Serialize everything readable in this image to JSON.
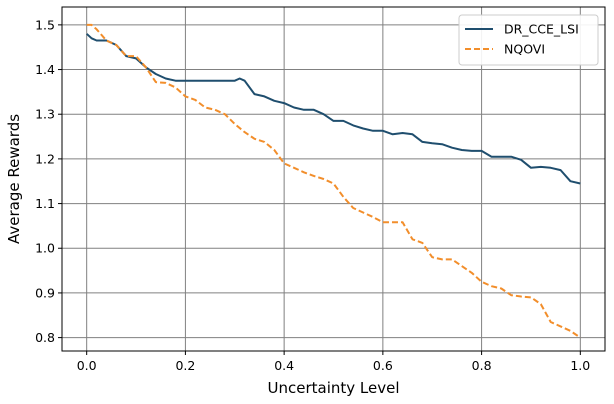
{
  "chart_data": {
    "type": "line",
    "title": "",
    "xlabel": "Uncertainty Level",
    "ylabel": "Average Rewards",
    "xlim": [
      -0.05,
      1.05
    ],
    "ylim": [
      0.77,
      1.54
    ],
    "xticks": [
      0.0,
      0.2,
      0.4,
      0.6,
      0.8,
      1.0
    ],
    "xtick_labels": [
      "0.0",
      "0.2",
      "0.4",
      "0.6",
      "0.8",
      "1.0"
    ],
    "yticks": [
      0.8,
      0.9,
      1.0,
      1.1,
      1.2,
      1.3,
      1.4,
      1.5
    ],
    "ytick_labels": [
      "0.8",
      "0.9",
      "1.0",
      "1.1",
      "1.2",
      "1.3",
      "1.4",
      "1.5"
    ],
    "grid": true,
    "legend_position": "top-right",
    "series": [
      {
        "name": "DR_CCE_LSI",
        "color": "#1f4e6e",
        "style": "solid",
        "x": [
          0.0,
          0.01,
          0.02,
          0.04,
          0.06,
          0.08,
          0.1,
          0.12,
          0.14,
          0.16,
          0.18,
          0.2,
          0.22,
          0.25,
          0.28,
          0.3,
          0.31,
          0.32,
          0.34,
          0.36,
          0.38,
          0.4,
          0.42,
          0.44,
          0.46,
          0.48,
          0.5,
          0.52,
          0.54,
          0.56,
          0.58,
          0.6,
          0.62,
          0.64,
          0.66,
          0.68,
          0.7,
          0.72,
          0.74,
          0.76,
          0.78,
          0.8,
          0.82,
          0.84,
          0.86,
          0.88,
          0.9,
          0.92,
          0.94,
          0.96,
          0.98,
          1.0
        ],
        "y": [
          1.48,
          1.47,
          1.465,
          1.465,
          1.455,
          1.43,
          1.425,
          1.405,
          1.39,
          1.38,
          1.375,
          1.375,
          1.375,
          1.375,
          1.375,
          1.375,
          1.38,
          1.375,
          1.345,
          1.34,
          1.33,
          1.325,
          1.315,
          1.31,
          1.31,
          1.3,
          1.285,
          1.285,
          1.275,
          1.268,
          1.263,
          1.263,
          1.255,
          1.258,
          1.255,
          1.238,
          1.235,
          1.233,
          1.225,
          1.22,
          1.218,
          1.218,
          1.205,
          1.205,
          1.205,
          1.198,
          1.18,
          1.182,
          1.18,
          1.175,
          1.15,
          1.145
        ]
      },
      {
        "name": "NQOVI",
        "color": "#f28e2b",
        "style": "dashed",
        "x": [
          0.0,
          0.01,
          0.02,
          0.04,
          0.06,
          0.08,
          0.1,
          0.12,
          0.14,
          0.16,
          0.18,
          0.2,
          0.22,
          0.24,
          0.26,
          0.28,
          0.3,
          0.32,
          0.34,
          0.36,
          0.38,
          0.4,
          0.42,
          0.44,
          0.46,
          0.48,
          0.5,
          0.52,
          0.54,
          0.56,
          0.58,
          0.6,
          0.62,
          0.64,
          0.66,
          0.68,
          0.7,
          0.72,
          0.74,
          0.76,
          0.78,
          0.8,
          0.82,
          0.84,
          0.86,
          0.88,
          0.9,
          0.92,
          0.94,
          0.96,
          0.98,
          1.0
        ],
        "y": [
          1.5,
          1.5,
          1.49,
          1.465,
          1.455,
          1.43,
          1.43,
          1.405,
          1.372,
          1.37,
          1.36,
          1.34,
          1.332,
          1.315,
          1.31,
          1.3,
          1.278,
          1.26,
          1.245,
          1.238,
          1.22,
          1.19,
          1.18,
          1.17,
          1.162,
          1.155,
          1.145,
          1.115,
          1.09,
          1.08,
          1.07,
          1.058,
          1.058,
          1.058,
          1.02,
          1.012,
          0.98,
          0.975,
          0.975,
          0.96,
          0.945,
          0.925,
          0.915,
          0.91,
          0.895,
          0.892,
          0.89,
          0.875,
          0.835,
          0.825,
          0.815,
          0.8
        ]
      }
    ]
  }
}
